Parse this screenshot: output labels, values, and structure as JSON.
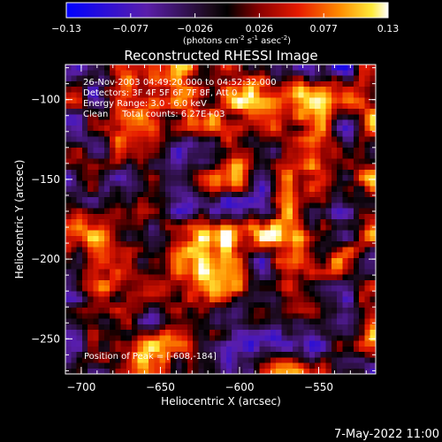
{
  "colorbar": {
    "tick_labels": [
      "-0.13",
      "-0.077",
      "-0.026",
      "0.026",
      "0.077",
      "0.13"
    ],
    "units_main": "(photons cm",
    "units_sup1": "-2",
    "units_mid1": " s",
    "units_sup2": "-1",
    "units_mid2": " asec",
    "units_sup3": "-2",
    "units_end": ")"
  },
  "chart_data": {
    "type": "heatmap",
    "title": "Reconstructed RHESSI Image",
    "xlabel": "Heliocentric X (arcsec)",
    "ylabel": "Heliocentric Y (arcsec)",
    "xlim": [
      -710,
      -514
    ],
    "ylim": [
      -272,
      -78
    ],
    "xticks": [
      -700,
      -650,
      -600,
      -550
    ],
    "yticks": [
      -100,
      -150,
      -200,
      -250
    ],
    "colorbar_range": [
      -0.13,
      0.13
    ],
    "colormap": "blue-purple-black-red-orange-yellow-white",
    "peak": {
      "x": -608,
      "y": -184
    },
    "grid": false,
    "annotations": {
      "line1": "26-Nov-2003 04:49:20.000 to 04:52:32.000",
      "line2": "Detectors: 3F 4F 5F 6F 7F 8F, Att 0",
      "line3": "Energy Range: 3.0 - 6.0 keV",
      "line4": "Clean     Total counts: 6.27E+03",
      "peak_text": "Position of Peak = [-608,-184]"
    }
  },
  "footer": {
    "date": "7-May-2022 11:00"
  }
}
